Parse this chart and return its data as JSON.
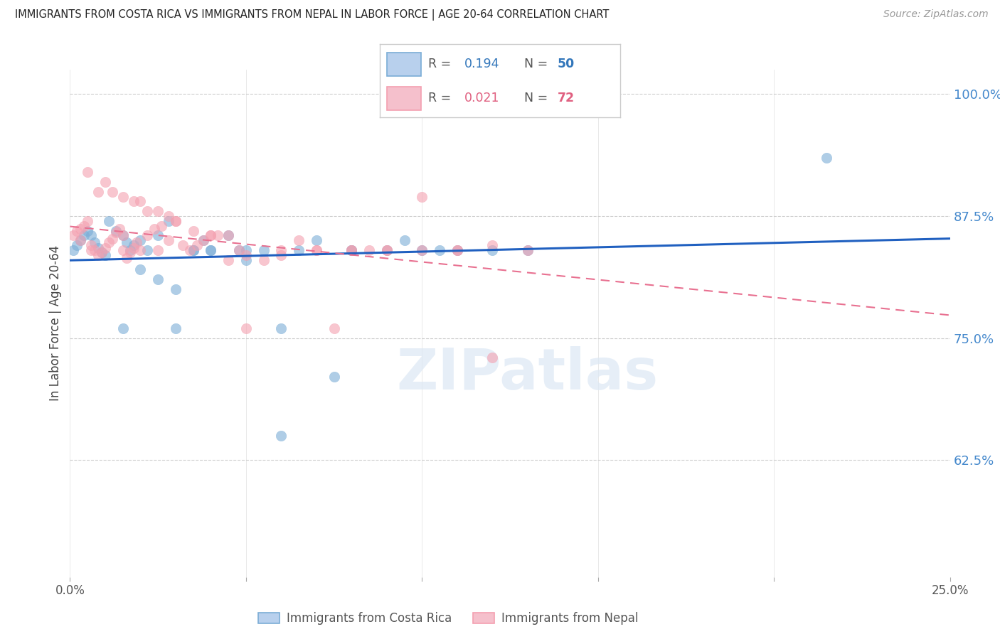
{
  "title": "IMMIGRANTS FROM COSTA RICA VS IMMIGRANTS FROM NEPAL IN LABOR FORCE | AGE 20-64 CORRELATION CHART",
  "source": "Source: ZipAtlas.com",
  "ylabel": "In Labor Force | Age 20-64",
  "yticks": [
    0.625,
    0.75,
    0.875,
    1.0
  ],
  "ytick_labels": [
    "62.5%",
    "75.0%",
    "87.5%",
    "100.0%"
  ],
  "xlim": [
    0.0,
    0.25
  ],
  "ylim": [
    0.505,
    1.025
  ],
  "watermark_text": "ZIPatlas",
  "costa_rica_color": "#7aadd6",
  "nepal_color": "#f4a0b0",
  "cr_line_color": "#2060c0",
  "np_line_color": "#e87090",
  "costa_rica_R": 0.194,
  "nepal_R": 0.021,
  "costa_rica_N": 50,
  "nepal_N": 72,
  "cr_x": [
    0.001,
    0.002,
    0.003,
    0.004,
    0.005,
    0.006,
    0.007,
    0.008,
    0.009,
    0.01,
    0.011,
    0.013,
    0.015,
    0.016,
    0.017,
    0.018,
    0.02,
    0.022,
    0.025,
    0.028,
    0.03,
    0.035,
    0.038,
    0.04,
    0.045,
    0.048,
    0.05,
    0.055,
    0.06,
    0.065,
    0.07,
    0.075,
    0.08,
    0.09,
    0.095,
    0.1,
    0.105,
    0.11,
    0.12,
    0.13,
    0.015,
    0.02,
    0.025,
    0.03,
    0.035,
    0.04,
    0.05,
    0.06,
    0.215,
    0.08
  ],
  "cr_y": [
    0.84,
    0.845,
    0.85,
    0.855,
    0.86,
    0.855,
    0.848,
    0.842,
    0.838,
    0.835,
    0.87,
    0.86,
    0.855,
    0.848,
    0.84,
    0.845,
    0.85,
    0.84,
    0.855,
    0.87,
    0.76,
    0.84,
    0.85,
    0.84,
    0.855,
    0.84,
    0.83,
    0.84,
    0.76,
    0.84,
    0.85,
    0.71,
    0.84,
    0.84,
    0.85,
    0.84,
    0.84,
    0.84,
    0.84,
    0.84,
    0.76,
    0.82,
    0.81,
    0.8,
    0.84,
    0.84,
    0.84,
    0.65,
    0.935,
    0.84
  ],
  "np_x": [
    0.001,
    0.002,
    0.003,
    0.004,
    0.005,
    0.006,
    0.007,
    0.008,
    0.009,
    0.01,
    0.011,
    0.012,
    0.013,
    0.014,
    0.015,
    0.016,
    0.017,
    0.018,
    0.019,
    0.02,
    0.022,
    0.024,
    0.026,
    0.028,
    0.03,
    0.032,
    0.034,
    0.036,
    0.038,
    0.04,
    0.042,
    0.045,
    0.048,
    0.05,
    0.055,
    0.06,
    0.065,
    0.07,
    0.075,
    0.08,
    0.085,
    0.09,
    0.1,
    0.11,
    0.12,
    0.005,
    0.008,
    0.01,
    0.012,
    0.015,
    0.018,
    0.02,
    0.022,
    0.025,
    0.028,
    0.03,
    0.035,
    0.04,
    0.045,
    0.05,
    0.06,
    0.07,
    0.08,
    0.09,
    0.1,
    0.11,
    0.13,
    0.003,
    0.006,
    0.015,
    0.025,
    0.12
  ],
  "np_y": [
    0.855,
    0.86,
    0.862,
    0.865,
    0.87,
    0.845,
    0.84,
    0.835,
    0.838,
    0.842,
    0.848,
    0.852,
    0.858,
    0.862,
    0.855,
    0.832,
    0.838,
    0.842,
    0.848,
    0.84,
    0.855,
    0.862,
    0.865,
    0.85,
    0.87,
    0.845,
    0.84,
    0.845,
    0.85,
    0.855,
    0.855,
    0.83,
    0.84,
    0.835,
    0.83,
    0.835,
    0.85,
    0.84,
    0.76,
    0.84,
    0.84,
    0.84,
    0.84,
    0.84,
    0.845,
    0.92,
    0.9,
    0.91,
    0.9,
    0.895,
    0.89,
    0.89,
    0.88,
    0.88,
    0.875,
    0.87,
    0.86,
    0.855,
    0.855,
    0.76,
    0.84,
    0.84,
    0.84,
    0.84,
    0.895,
    0.84,
    0.84,
    0.85,
    0.84,
    0.84,
    0.84,
    0.73
  ]
}
